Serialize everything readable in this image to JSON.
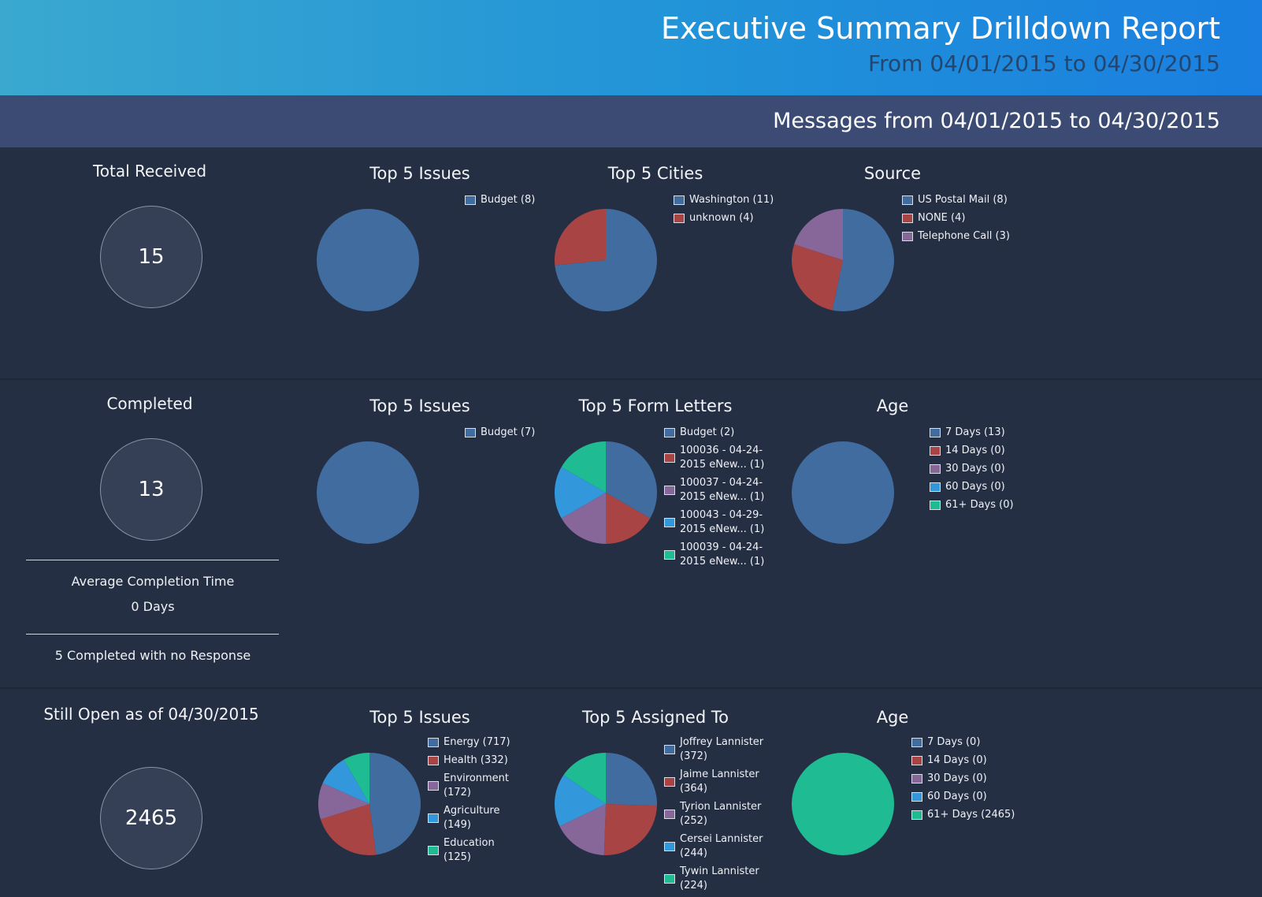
{
  "header": {
    "title": "Executive Summary Drilldown Report",
    "subtitle": "From 04/01/2015 to 04/30/2015"
  },
  "messages_bar": "Messages from 04/01/2015 to 04/30/2015",
  "colors": {
    "blue": "#416c9f",
    "red": "#a94444",
    "purple": "#876699",
    "skyblue": "#3397dc",
    "teal": "#1fbc94"
  },
  "sections": {
    "received": {
      "title": "Total Received",
      "value": "15"
    },
    "completed": {
      "title": "Completed",
      "value": "13",
      "avg_label": "Average Completion Time",
      "avg_value": "0 Days",
      "no_response": "5 Completed with no Response"
    },
    "open": {
      "title": "Still Open as of 04/30/2015",
      "value": "2465"
    }
  },
  "chart_data": [
    {
      "id": "r-issues",
      "type": "pie",
      "title": "Top 5 Issues",
      "slices": [
        {
          "label": "Budget (8)",
          "value": 8,
          "color": "#416c9f"
        }
      ]
    },
    {
      "id": "r-cities",
      "type": "pie",
      "title": "Top 5 Cities",
      "slices": [
        {
          "label": "Washington (11)",
          "value": 11,
          "color": "#416c9f"
        },
        {
          "label": "unknown (4)",
          "value": 4,
          "color": "#a94444"
        }
      ]
    },
    {
      "id": "r-source",
      "type": "pie",
      "title": "Source",
      "slices": [
        {
          "label": "US Postal Mail (8)",
          "value": 8,
          "color": "#416c9f"
        },
        {
          "label": "NONE (4)",
          "value": 4,
          "color": "#a94444"
        },
        {
          "label": "Telephone Call (3)",
          "value": 3,
          "color": "#876699"
        }
      ]
    },
    {
      "id": "c-issues",
      "type": "pie",
      "title": "Top 5 Issues",
      "slices": [
        {
          "label": "Budget (7)",
          "value": 7,
          "color": "#416c9f"
        }
      ]
    },
    {
      "id": "c-letters",
      "type": "pie",
      "title": "Top 5 Form Letters",
      "slices": [
        {
          "label": "Budget (2)",
          "value": 2,
          "color": "#416c9f"
        },
        {
          "label": "100036 - 04-24-2015 eNew... (1)",
          "value": 1,
          "color": "#a94444"
        },
        {
          "label": "100037 - 04-24-2015 eNew... (1)",
          "value": 1,
          "color": "#876699"
        },
        {
          "label": "100043 - 04-29-2015 eNew... (1)",
          "value": 1,
          "color": "#3397dc"
        },
        {
          "label": "100039 - 04-24-2015 eNew... (1)",
          "value": 1,
          "color": "#1fbc94"
        }
      ]
    },
    {
      "id": "c-age",
      "type": "pie",
      "title": "Age",
      "slices": [
        {
          "label": "7 Days (13)",
          "value": 13,
          "color": "#416c9f"
        },
        {
          "label": "14 Days (0)",
          "value": 0,
          "color": "#a94444"
        },
        {
          "label": "30 Days (0)",
          "value": 0,
          "color": "#876699"
        },
        {
          "label": "60 Days (0)",
          "value": 0,
          "color": "#3397dc"
        },
        {
          "label": "61+ Days (0)",
          "value": 0,
          "color": "#1fbc94"
        }
      ]
    },
    {
      "id": "o-issues",
      "type": "pie",
      "title": "Top 5 Issues",
      "slices": [
        {
          "label": "Energy (717)",
          "value": 717,
          "color": "#416c9f"
        },
        {
          "label": "Health (332)",
          "value": 332,
          "color": "#a94444"
        },
        {
          "label": "Environment (172)",
          "value": 172,
          "color": "#876699"
        },
        {
          "label": "Agriculture (149)",
          "value": 149,
          "color": "#3397dc"
        },
        {
          "label": "Education (125)",
          "value": 125,
          "color": "#1fbc94"
        }
      ]
    },
    {
      "id": "o-assigned",
      "type": "pie",
      "title": "Top 5 Assigned To",
      "slices": [
        {
          "label": "Joffrey Lannister (372)",
          "value": 372,
          "color": "#416c9f"
        },
        {
          "label": "Jaime Lannister (364)",
          "value": 364,
          "color": "#a94444"
        },
        {
          "label": "Tyrion Lannister (252)",
          "value": 252,
          "color": "#876699"
        },
        {
          "label": "Cersei Lannister (244)",
          "value": 244,
          "color": "#3397dc"
        },
        {
          "label": "Tywin Lannister (224)",
          "value": 224,
          "color": "#1fbc94"
        }
      ]
    },
    {
      "id": "o-age",
      "type": "pie",
      "title": "Age",
      "slices": [
        {
          "label": "7 Days (0)",
          "value": 0,
          "color": "#416c9f"
        },
        {
          "label": "14 Days (0)",
          "value": 0,
          "color": "#a94444"
        },
        {
          "label": "30 Days (0)",
          "value": 0,
          "color": "#876699"
        },
        {
          "label": "60 Days (0)",
          "value": 0,
          "color": "#3397dc"
        },
        {
          "label": "61+ Days (2465)",
          "value": 2465,
          "color": "#1fbc94"
        }
      ]
    }
  ]
}
